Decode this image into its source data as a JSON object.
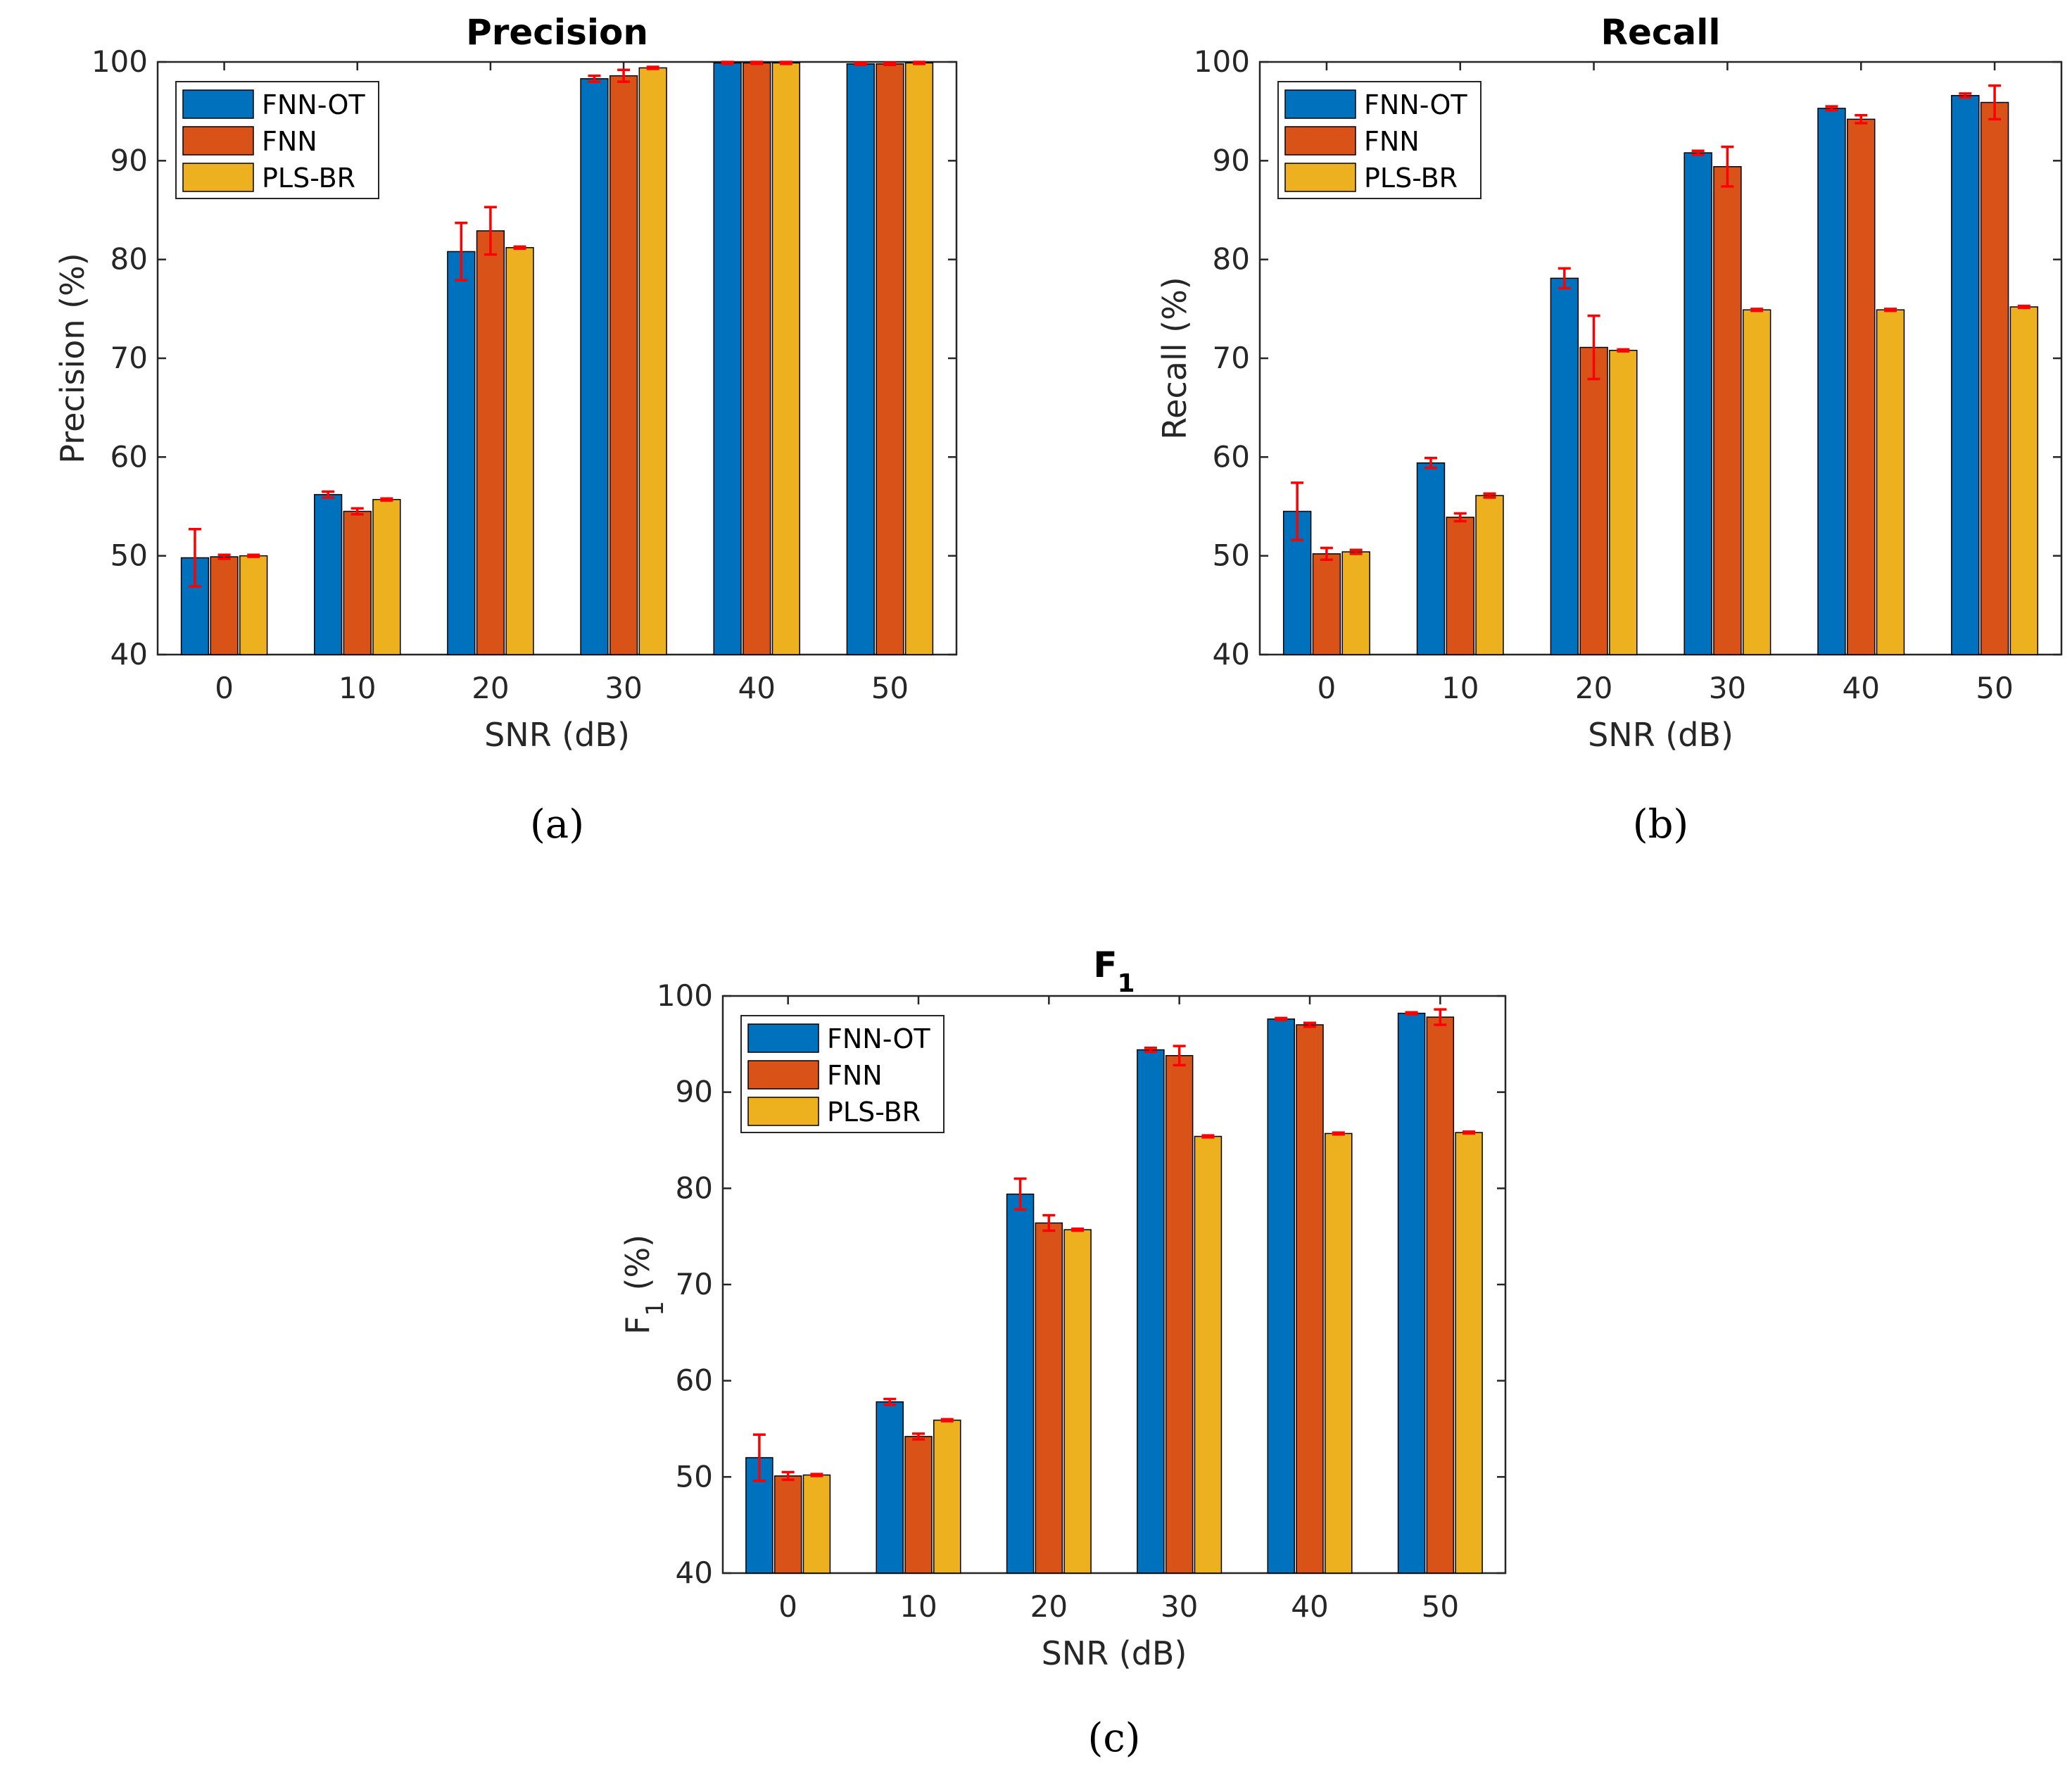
{
  "colors": {
    "FNN-OT": "#0072BD",
    "FNN": "#D95319",
    "PLS-BR": "#EDB120",
    "error_bar": "#FF0000"
  },
  "chart_data": [
    {
      "type": "bar",
      "panel_label": "(a)",
      "title": "Precision",
      "xlabel": "SNR (dB)",
      "ylabel": "Precision (%)",
      "categories": [
        "0",
        "10",
        "20",
        "30",
        "40",
        "50"
      ],
      "ylim": [
        40,
        100
      ],
      "yticks": [
        "40",
        "50",
        "60",
        "70",
        "80",
        "90",
        "100"
      ],
      "legend_position": "top-left",
      "series": [
        {
          "name": "FNN-OT",
          "values": [
            49.8,
            56.2,
            80.8,
            98.3,
            99.9,
            99.8
          ],
          "errors": [
            2.9,
            0.3,
            2.9,
            0.3,
            0.1,
            0.1
          ]
        },
        {
          "name": "FNN",
          "values": [
            49.9,
            54.5,
            82.9,
            98.6,
            99.9,
            99.8
          ],
          "errors": [
            0.2,
            0.3,
            2.4,
            0.6,
            0.1,
            0.1
          ]
        },
        {
          "name": "PLS-BR",
          "values": [
            50.0,
            55.7,
            81.2,
            99.4,
            99.9,
            99.9
          ],
          "errors": [
            0.1,
            0.1,
            0.1,
            0.1,
            0.1,
            0.1
          ]
        }
      ]
    },
    {
      "type": "bar",
      "panel_label": "(b)",
      "title": "Recall",
      "xlabel": "SNR (dB)",
      "ylabel": "Recall (%)",
      "categories": [
        "0",
        "10",
        "20",
        "30",
        "40",
        "50"
      ],
      "ylim": [
        40,
        100
      ],
      "yticks": [
        "40",
        "50",
        "60",
        "70",
        "80",
        "90",
        "100"
      ],
      "legend_position": "top-left",
      "series": [
        {
          "name": "FNN-OT",
          "values": [
            54.5,
            59.4,
            78.1,
            90.8,
            95.3,
            96.6
          ],
          "errors": [
            2.9,
            0.5,
            1.0,
            0.2,
            0.2,
            0.2
          ]
        },
        {
          "name": "FNN",
          "values": [
            50.2,
            53.9,
            71.1,
            89.4,
            94.2,
            95.9
          ],
          "errors": [
            0.6,
            0.4,
            3.2,
            2.0,
            0.4,
            1.7
          ]
        },
        {
          "name": "PLS-BR",
          "values": [
            50.4,
            56.1,
            70.8,
            74.9,
            74.9,
            75.2
          ],
          "errors": [
            0.2,
            0.2,
            0.1,
            0.1,
            0.1,
            0.1
          ]
        }
      ]
    },
    {
      "type": "bar",
      "panel_label": "(c)",
      "title": "F1",
      "xlabel": "SNR (dB)",
      "ylabel": "F1 (%)",
      "categories": [
        "0",
        "10",
        "20",
        "30",
        "40",
        "50"
      ],
      "ylim": [
        40,
        100
      ],
      "yticks": [
        "40",
        "50",
        "60",
        "70",
        "80",
        "90",
        "100"
      ],
      "legend_position": "top-left",
      "series": [
        {
          "name": "FNN-OT",
          "values": [
            52.0,
            57.8,
            79.4,
            94.4,
            97.6,
            98.2
          ],
          "errors": [
            2.4,
            0.3,
            1.6,
            0.2,
            0.1,
            0.1
          ]
        },
        {
          "name": "FNN",
          "values": [
            50.1,
            54.2,
            76.4,
            93.8,
            97.0,
            97.8
          ],
          "errors": [
            0.4,
            0.3,
            0.8,
            1.0,
            0.2,
            0.8
          ]
        },
        {
          "name": "PLS-BR",
          "values": [
            50.2,
            55.9,
            75.7,
            85.4,
            85.7,
            85.8
          ],
          "errors": [
            0.1,
            0.1,
            0.1,
            0.1,
            0.1,
            0.1
          ]
        }
      ]
    }
  ]
}
